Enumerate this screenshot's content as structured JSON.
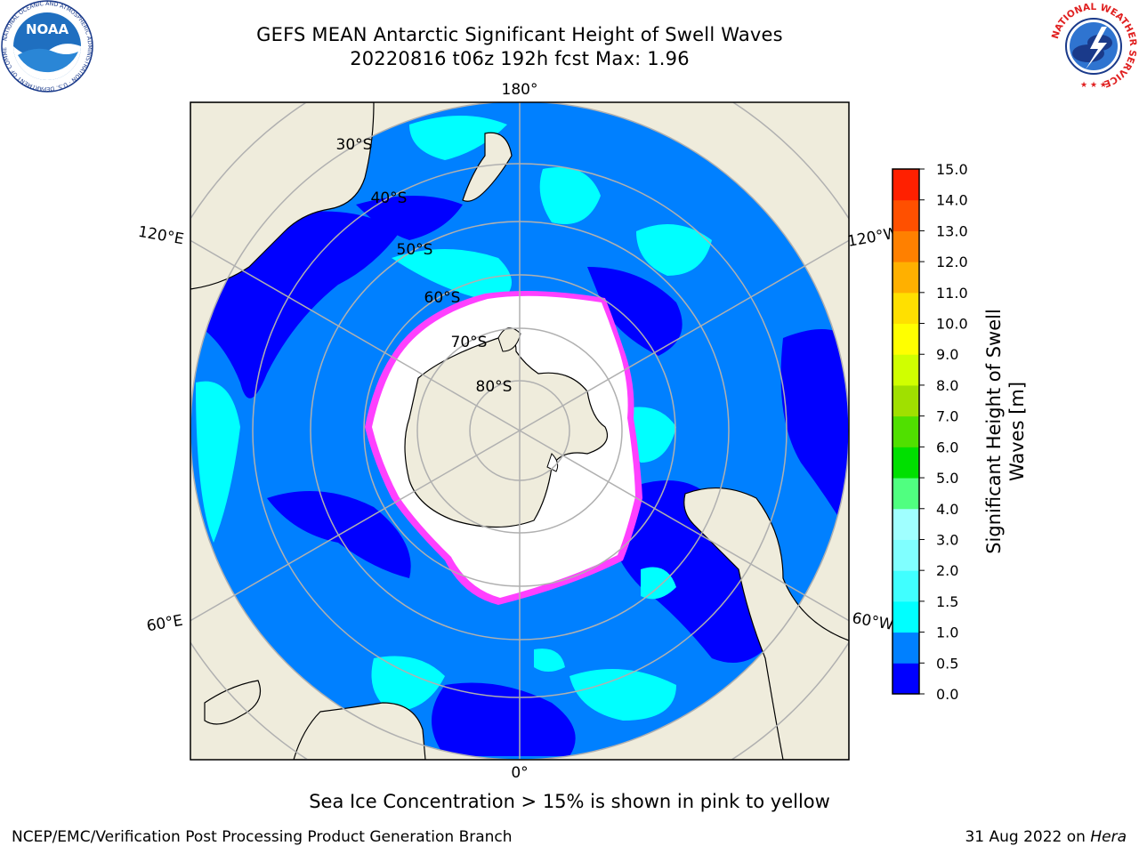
{
  "title": {
    "line1": "GEFS MEAN Antarctic Significant Height of Swell Waves",
    "line2": "20220816 t06z 192h fcst   Max: 1.96"
  },
  "map": {
    "projection": "south-polar-stereographic",
    "longitude_labels": [
      "180°",
      "120°E",
      "120°W",
      "60°E",
      "60°W",
      "0°"
    ],
    "latitude_labels": [
      "30°S",
      "40°S",
      "50°S",
      "60°S",
      "70°S",
      "80°S"
    ],
    "colors": {
      "land": "#efecdc",
      "ocean_low": "#0000ff",
      "ocean_mid": "#0080ff",
      "ocean_high": "#00ffff",
      "sea_ice_interior": "#ffffff",
      "ice_edge": "#ff40ff",
      "grid": "#b0b0b0"
    }
  },
  "colorbar": {
    "label_line1": "Significant Height of Swell",
    "label_line2": "Waves [m]",
    "ticks": [
      "0.0",
      "0.5",
      "1.0",
      "1.5",
      "2.0",
      "3.0",
      "4.0",
      "5.0",
      "6.0",
      "7.0",
      "8.0",
      "9.0",
      "10.0",
      "11.0",
      "12.0",
      "13.0",
      "14.0",
      "15.0"
    ],
    "colors": [
      "#0000ff",
      "#0080ff",
      "#00ffff",
      "#40ffff",
      "#80ffff",
      "#a0ffff",
      "#50ff80",
      "#00e000",
      "#50e000",
      "#a0e000",
      "#d0ff00",
      "#ffff00",
      "#ffe000",
      "#ffb000",
      "#ff8000",
      "#ff5000",
      "#ff2000",
      "#ff0000"
    ]
  },
  "note": "Sea Ice Concentration > 15% is shown in pink to yellow",
  "footer": {
    "left": "NCEP/EMC/Verification Post Processing Product Generation Branch",
    "right_prefix": "31 Aug 2022 on",
    "right_machine": "Hera"
  },
  "logos": {
    "noaa_text": "NOAA",
    "noaa_ring_text": "NATIONAL OCEANIC AND ATMOSPHERIC ADMINISTRATION · U.S. DEPARTMENT OF COMMERCE",
    "nws_ring_text": "NATIONAL WEATHER SERVICE"
  }
}
